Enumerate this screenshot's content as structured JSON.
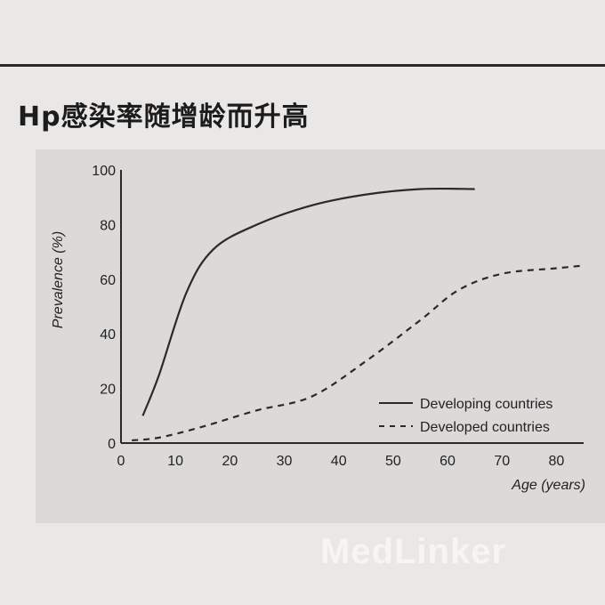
{
  "page": {
    "title": "Hp感染率随增龄而升高"
  },
  "watermark": "MedLinker",
  "chart_data": {
    "type": "line",
    "xlabel": "Age (years)",
    "ylabel": "Prevalence (%)",
    "xlim": [
      0,
      85
    ],
    "ylim": [
      0,
      100
    ],
    "x_ticks": [
      "0",
      "10",
      "20",
      "30",
      "40",
      "50",
      "60",
      "70",
      "80"
    ],
    "y_ticks": [
      "0",
      "20",
      "40",
      "60",
      "80",
      "100"
    ],
    "grid": false,
    "legend": "right",
    "series": [
      {
        "name": "Developing countries",
        "style": "solid",
        "x": [
          4,
          7,
          12,
          17,
          25,
          35,
          45,
          55,
          65
        ],
        "y": [
          10,
          25,
          55,
          71,
          80,
          87,
          91,
          93,
          93
        ]
      },
      {
        "name": "Developed countries",
        "style": "dashed",
        "x": [
          2,
          7,
          15,
          25,
          35,
          45,
          55,
          62,
          70,
          80,
          85
        ],
        "y": [
          1,
          2,
          6,
          12,
          17,
          30,
          45,
          56,
          62,
          64,
          65
        ]
      }
    ],
    "colors": {
      "line": "#2a2a2a",
      "axis": "#2a2a2a"
    }
  }
}
